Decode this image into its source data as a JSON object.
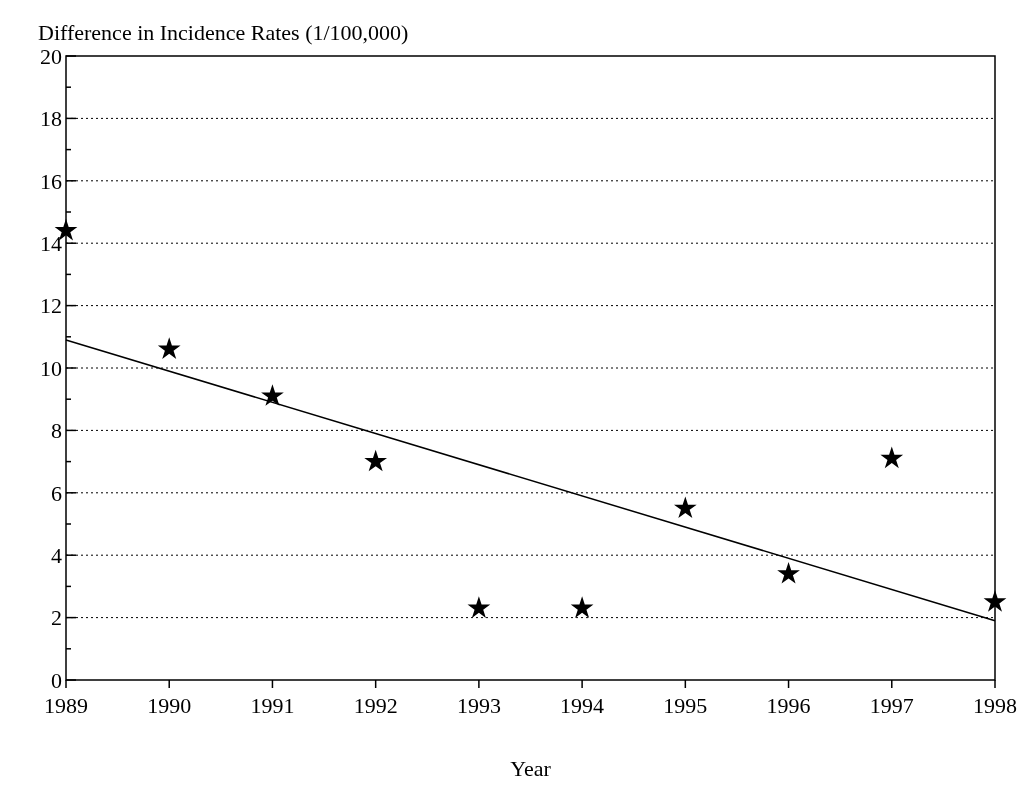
{
  "chart_data": {
    "type": "scatter",
    "ylabel": "Difference in Incidence Rates (1/100,000)",
    "xlabel": "Year",
    "x": [
      1989,
      1990,
      1991,
      1992,
      1993,
      1994,
      1995,
      1996,
      1997,
      1998
    ],
    "series": [
      {
        "type": "scatter",
        "color": "#000000",
        "marker": "star",
        "values": [
          14.4,
          10.6,
          9.1,
          7.0,
          2.3,
          2.3,
          5.5,
          3.4,
          7.1,
          2.5
        ]
      },
      {
        "type": "line",
        "color": "#000000",
        "marker": "none",
        "line_style": "solid",
        "x": [
          1989,
          1998
        ],
        "values": [
          10.9,
          1.9
        ]
      }
    ],
    "xlim": [
      1989,
      1998
    ],
    "xticks": [
      1989,
      1990,
      1991,
      1992,
      1993,
      1994,
      1995,
      1996,
      1997,
      1998
    ],
    "ylim": [
      0,
      20
    ],
    "yticks": [
      0,
      {
        "value": 1,
        "label": null
      },
      2,
      {
        "value": 3,
        "label": null
      },
      4,
      {
        "value": 5,
        "label": null
      },
      6,
      {
        "value": 7,
        "label": null
      },
      8,
      {
        "value": 9,
        "label": null
      },
      10,
      {
        "value": 11,
        "label": null
      },
      12,
      {
        "value": 13,
        "label": null
      },
      14,
      {
        "value": 15,
        "label": null
      },
      16,
      {
        "value": 17,
        "label": null
      },
      18,
      {
        "value": 19,
        "label": null
      },
      20
    ],
    "grid": "y"
  }
}
